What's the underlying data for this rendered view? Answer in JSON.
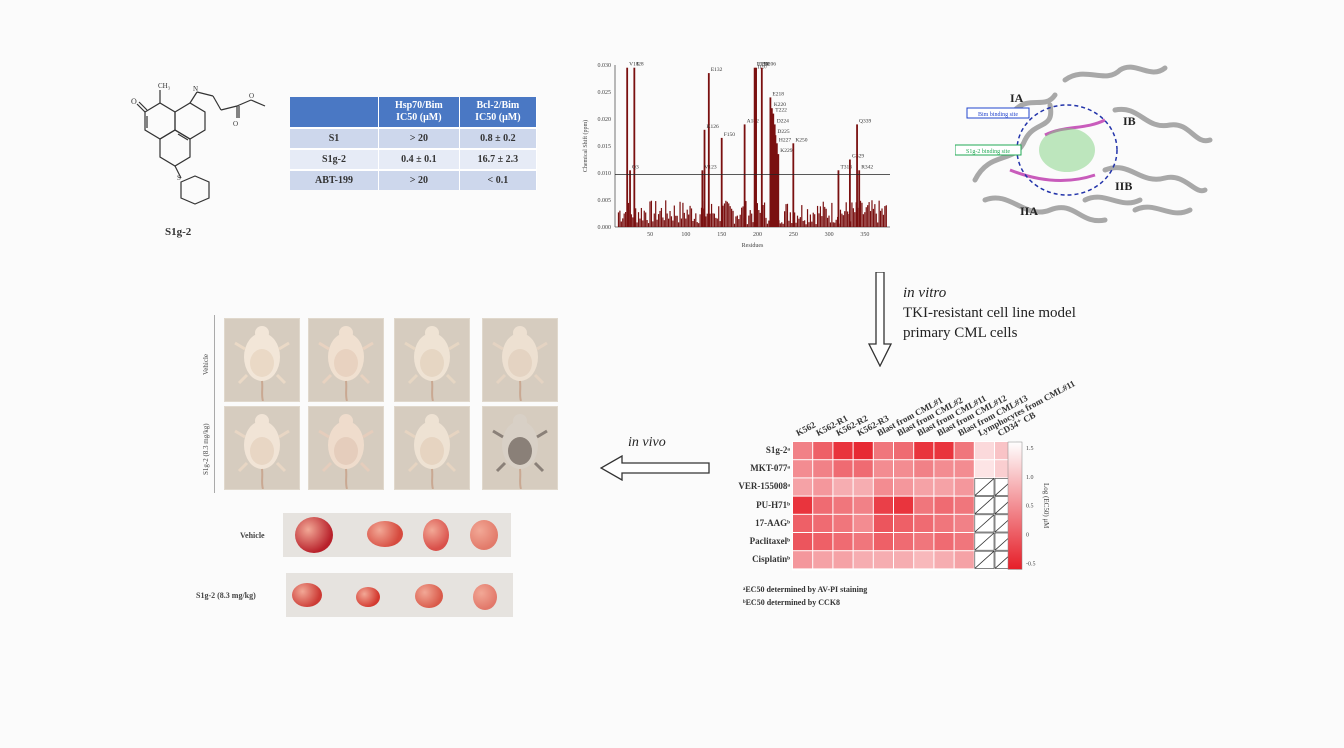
{
  "compound": {
    "label": "S1g-2"
  },
  "ic50_table": {
    "headers": [
      "",
      "Hsp70/Bim IC50 (μM)",
      "Bcl-2/Bim IC50 (μM)"
    ],
    "header_main": [
      "",
      "Hsp70/Bim",
      "Bcl-2/Bim"
    ],
    "header_sub": [
      "",
      "IC50 (μM)",
      "IC50 (μM)"
    ],
    "rows": [
      [
        "S1",
        "> 20",
        "0.8 ± 0.2"
      ],
      [
        "S1g-2",
        "0.4 ± 0.1",
        "16.7 ± 2.3"
      ],
      [
        "ABT-199",
        "> 20",
        "< 0.1"
      ]
    ]
  },
  "chart_data": {
    "type": "bar",
    "title": "",
    "xlabel": "Residues",
    "ylabel": "Chemical Shift (ppm)",
    "xlim": [
      1,
      385
    ],
    "ylim": [
      0,
      0.03
    ],
    "yticks": [
      "0.000",
      "0.005",
      "0.010",
      "0.015",
      "0.020",
      "0.025",
      "0.030"
    ],
    "xticks": [
      "50",
      "100",
      "150",
      "200",
      "250",
      "300",
      "350"
    ],
    "threshold": 0.0097,
    "labeled_peaks": [
      {
        "label": "V18",
        "x": 18,
        "y": 0.0295
      },
      {
        "label": "I28",
        "x": 28,
        "y": 0.0295
      },
      {
        "label": "Q3",
        "x": 22,
        "y": 0.0105
      },
      {
        "label": "E132",
        "x": 132,
        "y": 0.0285
      },
      {
        "label": "K126",
        "x": 126,
        "y": 0.018
      },
      {
        "label": "V123",
        "x": 123,
        "y": 0.0105
      },
      {
        "label": "F150",
        "x": 150,
        "y": 0.0165
      },
      {
        "label": "A182",
        "x": 182,
        "y": 0.019
      },
      {
        "label": "L196",
        "x": 196,
        "y": 0.0295
      },
      {
        "label": "I197",
        "x": 197,
        "y": 0.029
      },
      {
        "label": "F198",
        "x": 198,
        "y": 0.0295
      },
      {
        "label": "D206",
        "x": 206,
        "y": 0.0295
      },
      {
        "label": "E218",
        "x": 218,
        "y": 0.024
      },
      {
        "label": "K220",
        "x": 220,
        "y": 0.022
      },
      {
        "label": "T222",
        "x": 222,
        "y": 0.021
      },
      {
        "label": "D224",
        "x": 224,
        "y": 0.019
      },
      {
        "label": "D225",
        "x": 225,
        "y": 0.017
      },
      {
        "label": "H227",
        "x": 227,
        "y": 0.0155
      },
      {
        "label": "K229",
        "x": 229,
        "y": 0.0135
      },
      {
        "label": "K250",
        "x": 250,
        "y": 0.0155
      },
      {
        "label": "T313",
        "x": 313,
        "y": 0.0105
      },
      {
        "label": "G329",
        "x": 329,
        "y": 0.0125
      },
      {
        "label": "Q339",
        "x": 339,
        "y": 0.019
      },
      {
        "label": "R342",
        "x": 342,
        "y": 0.0105
      }
    ],
    "values": [
      0.0295,
      0.0295,
      0.0105,
      0.0285,
      0.018,
      0.0105,
      0.0165,
      0.019,
      0.0295,
      0.029,
      0.0295,
      0.0295,
      0.024,
      0.022,
      0.021,
      0.019,
      0.017,
      0.0155,
      0.0135,
      0.0155,
      0.0105,
      0.0125,
      0.019,
      0.0105
    ]
  },
  "protein": {
    "labels": [
      "IA",
      "IB",
      "IIA",
      "IIB"
    ],
    "site_labels": [
      "Bim binding site",
      "S1g-2 binding site"
    ]
  },
  "flow": {
    "invitro_italic": "in vitro",
    "invitro_line1": "TKI-resistant cell line model",
    "invitro_line2": "primary CML cells",
    "invivo": "in vivo"
  },
  "mice": {
    "row_labels": [
      "Vehicle",
      "S1g-2 (8.3 mg/kg)"
    ]
  },
  "tumors": {
    "labels": [
      "Vehicle",
      "S1g-2 (8.3 mg/kg)"
    ]
  },
  "heatmap": {
    "rows": [
      "S1g-2ᵃ",
      "MKT-077ᵃ",
      "VER-155008ᵃ",
      "PU-H71ᵇ",
      "17-AAGᵇ",
      "Paclitaxelᵇ",
      "Cisplatinᵇ"
    ],
    "cols": [
      "K562",
      "K562-R1",
      "K562-R2",
      "K562-R3",
      "Blast from CML#1",
      "Blast from CML#2",
      "Blast from CML#11",
      "Blast from CML#12",
      "Blast from CML#13",
      "Lymphocytes from CML#11",
      "CD34⁺ CB"
    ],
    "colorbar_label": "Log (EC50) μM",
    "colorbar_ticks": [
      "1.5",
      "1.0",
      "0.5",
      "0",
      "-0.5"
    ],
    "footnote_a": "ᵃEC50 determined by AV-PI staining",
    "footnote_b": "ᵇEC50 determined by CCK8",
    "values": [
      [
        0.4,
        0.1,
        -0.3,
        -0.4,
        0.3,
        0.2,
        -0.3,
        -0.3,
        0.3,
        1.2,
        1.0
      ],
      [
        0.5,
        0.4,
        0.2,
        0.2,
        0.5,
        0.5,
        0.4,
        0.5,
        0.5,
        1.3,
        1.1
      ],
      [
        0.7,
        0.6,
        0.8,
        0.8,
        0.5,
        0.6,
        0.7,
        0.7,
        0.6,
        null,
        null
      ],
      [
        -0.3,
        0.2,
        0.3,
        0.4,
        -0.2,
        -0.3,
        0.3,
        0.2,
        0.3,
        null,
        null
      ],
      [
        0.1,
        0.2,
        0.3,
        0.5,
        0.0,
        0.1,
        0.2,
        0.3,
        0.4,
        null,
        null
      ],
      [
        0.0,
        0.1,
        0.2,
        0.3,
        0.1,
        0.2,
        0.3,
        0.2,
        0.3,
        null,
        null
      ],
      [
        0.6,
        0.7,
        0.7,
        0.8,
        0.8,
        0.8,
        0.9,
        0.8,
        0.7,
        null,
        null
      ]
    ]
  }
}
